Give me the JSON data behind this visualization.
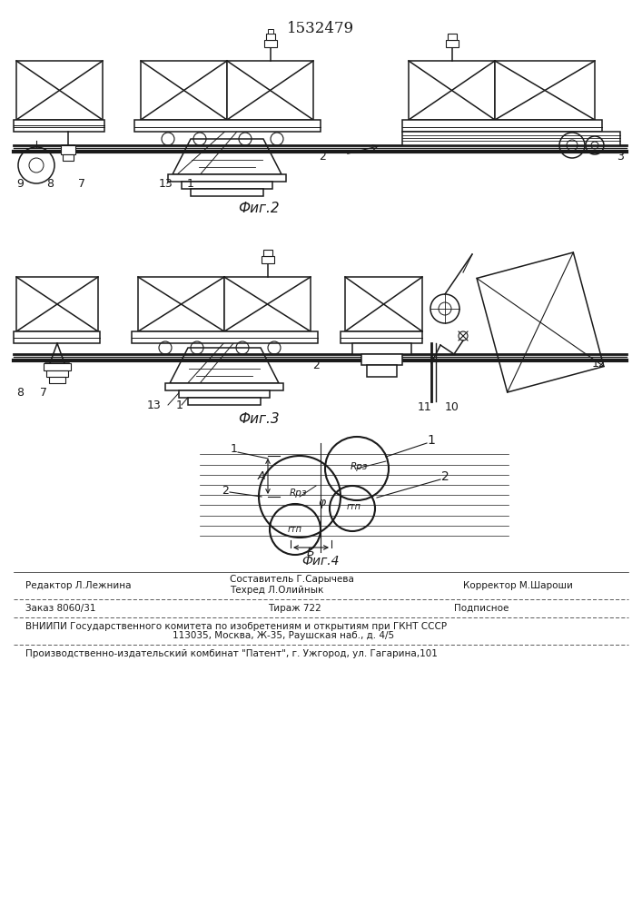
{
  "patent_number": "1532479",
  "fig2_label": "Фиг.2",
  "fig3_label": "Фиг.3",
  "fig4_label": "Фиг.4",
  "footer_line1_left": "Редактор Л.Лежнина",
  "footer_line1_center1": "Составитель Г.Сарычева",
  "footer_line1_center2": "Техред Л.Олийнык",
  "footer_line1_right": "Корректор М.Шароши",
  "footer_line2_left": "Заказ 8060/31",
  "footer_line2_center": "Тираж 722",
  "footer_line2_right": "Подписное",
  "footer_line3": "ВНИИПИ Государственного комитета по изобретениям и открытиям при ГКНТ СССР",
  "footer_line4": "113035, Москва, Ж-35, Раушская наб., д. 4/5",
  "footer_line5": "Производственно-издательский комбинат \"Патент\", г. Ужгород, ул. Гагарина,101",
  "bg_color": "#ffffff",
  "line_color": "#1a1a1a"
}
